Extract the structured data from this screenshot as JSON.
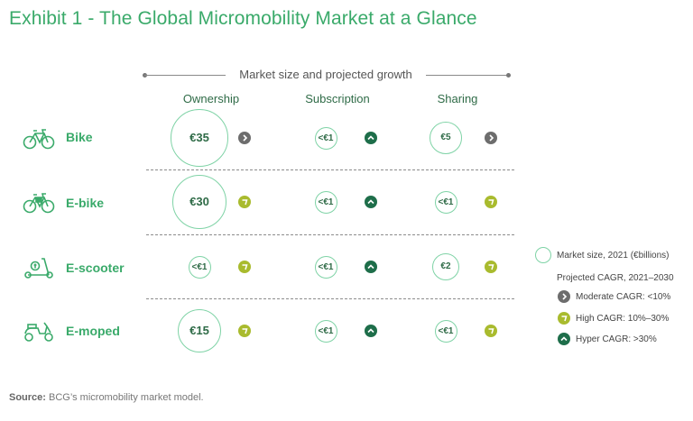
{
  "title": "Exhibit 1 - The Global Micromobility Market at a Glance",
  "header": {
    "label": "Market size and projected growth"
  },
  "columns": [
    "Ownership",
    "Subscription",
    "Sharing"
  ],
  "rows": [
    {
      "label": "Bike",
      "icon": "bicycle-icon"
    },
    {
      "label": "E-bike",
      "icon": "e-bike-icon"
    },
    {
      "label": "E-scooter",
      "icon": "e-scooter-icon"
    },
    {
      "label": "E-moped",
      "icon": "e-moped-icon"
    }
  ],
  "chart_data": {
    "type": "table",
    "title": "Exhibit 1 - The Global Micromobility Market at a Glance",
    "subtitle": "Market size and projected growth",
    "rows": [
      "Bike",
      "E-bike",
      "E-scooter",
      "E-moped"
    ],
    "columns": [
      "Ownership",
      "Subscription",
      "Sharing"
    ],
    "market_size_label": [
      [
        "€35",
        "<€1",
        "€5"
      ],
      [
        "€30",
        "<€1",
        "<€1"
      ],
      [
        "<€1",
        "<€1",
        "€2"
      ],
      [
        "€15",
        "<€1",
        "<€1"
      ]
    ],
    "market_size_value_billions_eur": [
      [
        35,
        1,
        5
      ],
      [
        30,
        1,
        1
      ],
      [
        1,
        1,
        2
      ],
      [
        15,
        1,
        1
      ]
    ],
    "cagr_category": [
      [
        "moderate",
        "hyper",
        "moderate"
      ],
      [
        "high",
        "hyper",
        "high"
      ],
      [
        "high",
        "hyper",
        "high"
      ],
      [
        "high",
        "hyper",
        "high"
      ]
    ]
  },
  "legend": {
    "size_label": "Market size, 2021 (€billions)",
    "cagr_title": "Projected CAGR, 2021–2030",
    "items": [
      {
        "key": "moderate",
        "label": "Moderate CAGR: <10%"
      },
      {
        "key": "high",
        "label": "High CAGR: 10%–30%"
      },
      {
        "key": "hyper",
        "label": "Hyper CAGR: >30%"
      }
    ]
  },
  "colors": {
    "title": "#3aaa6a",
    "moderate": "#6d6d6d",
    "high": "#a9bb2e",
    "hyper": "#1e6e4a",
    "bubble_border": "#7fd3a6",
    "text_dark_green": "#2f6b47"
  },
  "source": {
    "prefix": "Source:",
    "text": "BCG’s micromobility market model."
  }
}
